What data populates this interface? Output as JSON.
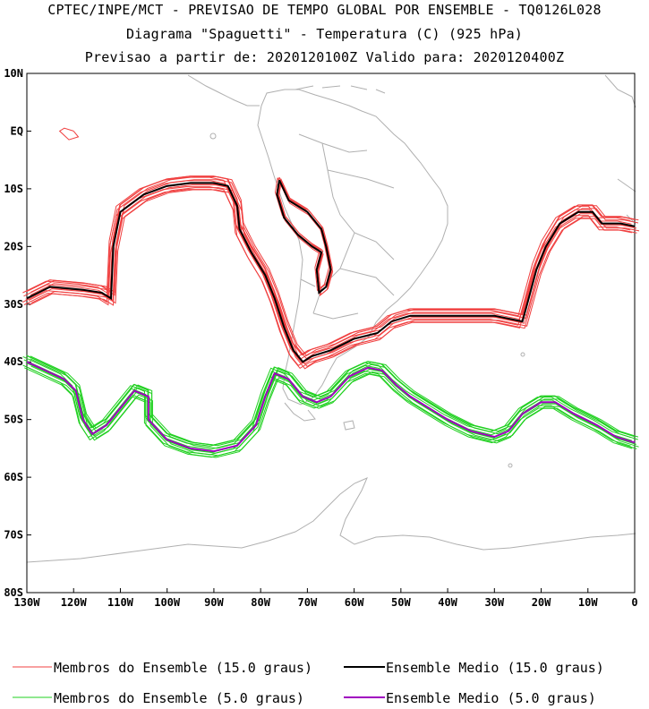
{
  "titles": {
    "line1": "CPTEC/INPE/MCT - PREVISAO DE TEMPO GLOBAL POR ENSEMBLE - TQ0126L028",
    "line2": "Diagrama \"Spaguetti\" - Temperatura (C) (925 hPa)",
    "line3": "Previsao a partir de: 2020120100Z  Valido para: 2020120400Z"
  },
  "axes": {
    "lat_labels": [
      "10N",
      "EQ",
      "10S",
      "20S",
      "30S",
      "40S",
      "50S",
      "60S",
      "70S",
      "80S"
    ],
    "lon_labels": [
      "130W",
      "120W",
      "110W",
      "100W",
      "90W",
      "80W",
      "70W",
      "60W",
      "50W",
      "40W",
      "30W",
      "20W",
      "10W",
      "0"
    ],
    "lat_range": [
      -80,
      10
    ],
    "lon_range": [
      -130,
      0
    ]
  },
  "colors": {
    "member_15": "#f04040",
    "mean_15": "#000000",
    "member_5": "#20d020",
    "mean_5": "#a000c0",
    "coast": "#b0b0b0"
  },
  "legend": {
    "members_15": "Membros do Ensemble (15.0 graus)",
    "mean_15": "Ensemble Medio (15.0 graus)",
    "members_5": "Membros do Ensemble (5.0 graus)",
    "mean_5": "Ensemble Medio (5.0 graus)"
  }
}
